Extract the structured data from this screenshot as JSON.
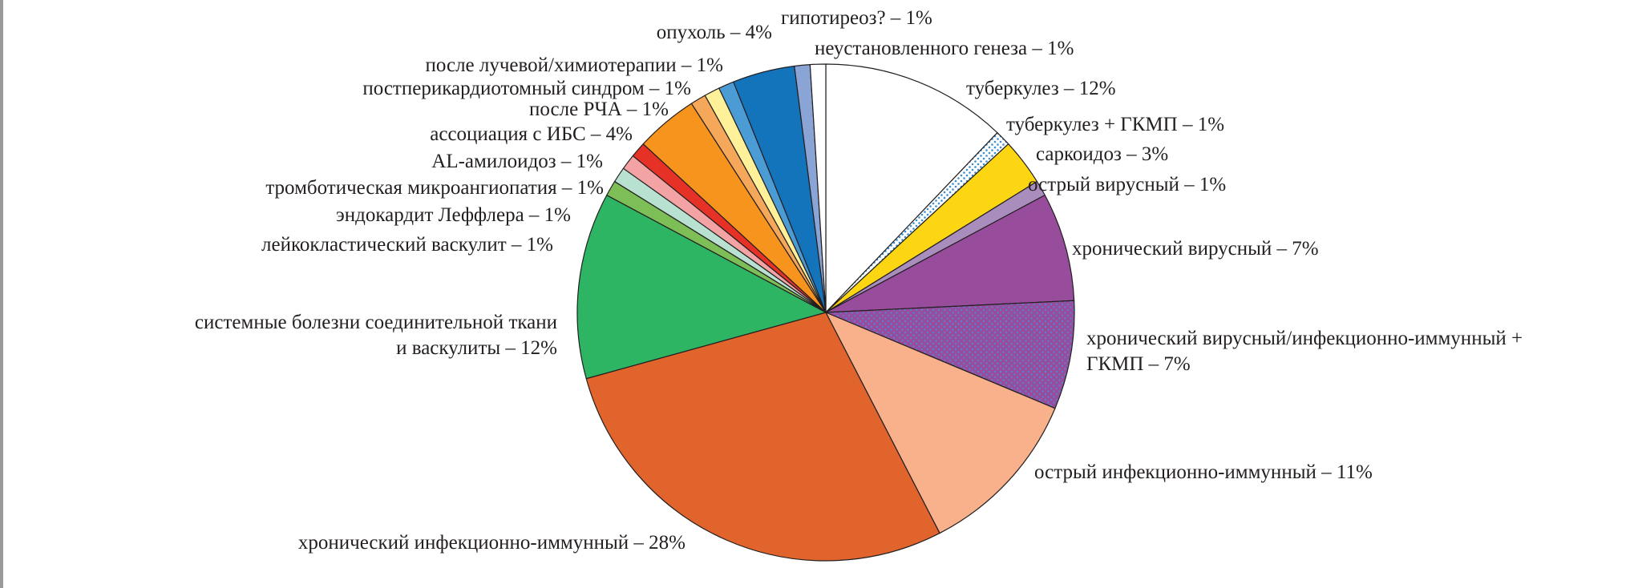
{
  "chart_data": {
    "type": "pie",
    "start_angle_deg": 0,
    "direction": "clockwise",
    "unit": "%",
    "slices": [
      {
        "label": "туберкулез – 12%",
        "value": 12,
        "color": "#ffffff",
        "pattern": "none"
      },
      {
        "label": "туберкулез + ГКМП – 1%",
        "value": 1,
        "color": "#ffffff",
        "pattern": "dots-blue"
      },
      {
        "label": "саркоидоз – 3%",
        "value": 3,
        "color": "#fcd612",
        "pattern": "none"
      },
      {
        "label": "острый вирусный – 1%",
        "value": 1,
        "color": "#a98dbd",
        "pattern": "none"
      },
      {
        "label": "хронический вирусный – 7%",
        "value": 7,
        "color": "#974c9c",
        "pattern": "none"
      },
      {
        "label": [
          "хронический вирусный/инфекционно-иммунный +",
          "ГКМП – 7%"
        ],
        "value": 7,
        "color": "#974c9c",
        "pattern": "dots-blue"
      },
      {
        "label": "острый инфекционно-иммунный – 11%",
        "value": 11,
        "color": "#f8b18b",
        "pattern": "none"
      },
      {
        "label": "хронический инфекционно-иммунный – 28%",
        "value": 28,
        "color": "#e0642b",
        "pattern": "none"
      },
      {
        "label": [
          "системные болезни соединительной ткани",
          "и васкулиты – 12%"
        ],
        "value": 12,
        "color": "#2eb563",
        "pattern": "none"
      },
      {
        "label": "лейкокластический васкулит – 1%",
        "value": 1,
        "color": "#7dbe57",
        "pattern": "none"
      },
      {
        "label": "эндокардит Леффлера – 1%",
        "value": 1,
        "color": "#b8e1d2",
        "pattern": "none"
      },
      {
        "label": "тромботическая микроангиопатия – 1%",
        "value": 1,
        "color": "#f4a3a5",
        "pattern": "none"
      },
      {
        "label": "AL-амилоидоз – 1%",
        "value": 1,
        "color": "#e63127",
        "pattern": "none"
      },
      {
        "label": "ассоциация с ИБС – 4%",
        "value": 4,
        "color": "#f7941d",
        "pattern": "none"
      },
      {
        "label": "после РЧА – 1%",
        "value": 1,
        "color": "#f5a85a",
        "pattern": "none"
      },
      {
        "label": "постперикардиотомный синдром – 1%",
        "value": 1,
        "color": "#fff199",
        "pattern": "none"
      },
      {
        "label": "после лучевой/химиотерапии – 1%",
        "value": 1,
        "color": "#4b9bd5",
        "pattern": "none"
      },
      {
        "label": "опухоль – 4%",
        "value": 4,
        "color": "#1474bb",
        "pattern": "none"
      },
      {
        "label": "гипотиреоз? – 1%",
        "value": 1,
        "color": "#8ba4d6",
        "pattern": "none"
      },
      {
        "label": "неустановленного генеза – 1%",
        "value": 1,
        "color": "#ffffff",
        "pattern": "none"
      }
    ]
  }
}
